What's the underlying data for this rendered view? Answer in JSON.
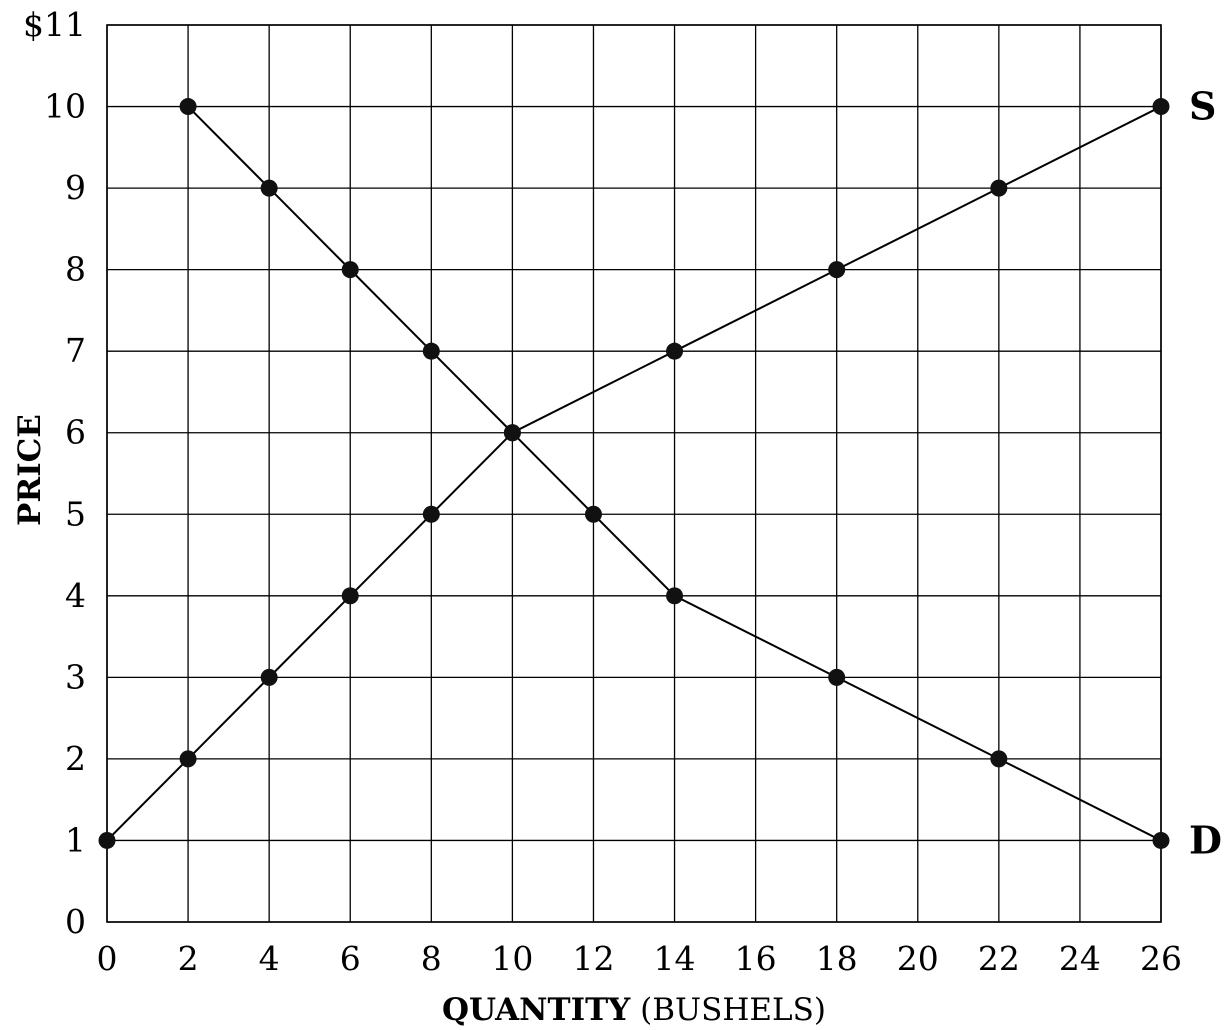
{
  "chart_data": {
    "type": "line",
    "xlabel_bold": "QUANTITY",
    "xlabel_rest": "(BUSHELS)",
    "ylabel": "PRICE",
    "xlim": [
      0,
      26
    ],
    "ylim": [
      0,
      11
    ],
    "x_ticks": [
      "0",
      "2",
      "4",
      "6",
      "8",
      "10",
      "12",
      "14",
      "16",
      "18",
      "20",
      "22",
      "24",
      "26"
    ],
    "y_ticks": [
      "0",
      "1",
      "2",
      "3",
      "4",
      "5",
      "6",
      "7",
      "8",
      "9",
      "10",
      "$11"
    ],
    "grid": true,
    "series": [
      {
        "name": "S",
        "points": [
          [
            0,
            1
          ],
          [
            2,
            2
          ],
          [
            4,
            3
          ],
          [
            6,
            4
          ],
          [
            8,
            5
          ],
          [
            10,
            6
          ],
          [
            14,
            7
          ],
          [
            18,
            8
          ],
          [
            22,
            9
          ],
          [
            26,
            10
          ]
        ]
      },
      {
        "name": "D",
        "points": [
          [
            2,
            10
          ],
          [
            4,
            9
          ],
          [
            6,
            8
          ],
          [
            8,
            7
          ],
          [
            10,
            6
          ],
          [
            12,
            5
          ],
          [
            14,
            4
          ],
          [
            18,
            3
          ],
          [
            22,
            2
          ],
          [
            26,
            1
          ]
        ]
      }
    ]
  }
}
